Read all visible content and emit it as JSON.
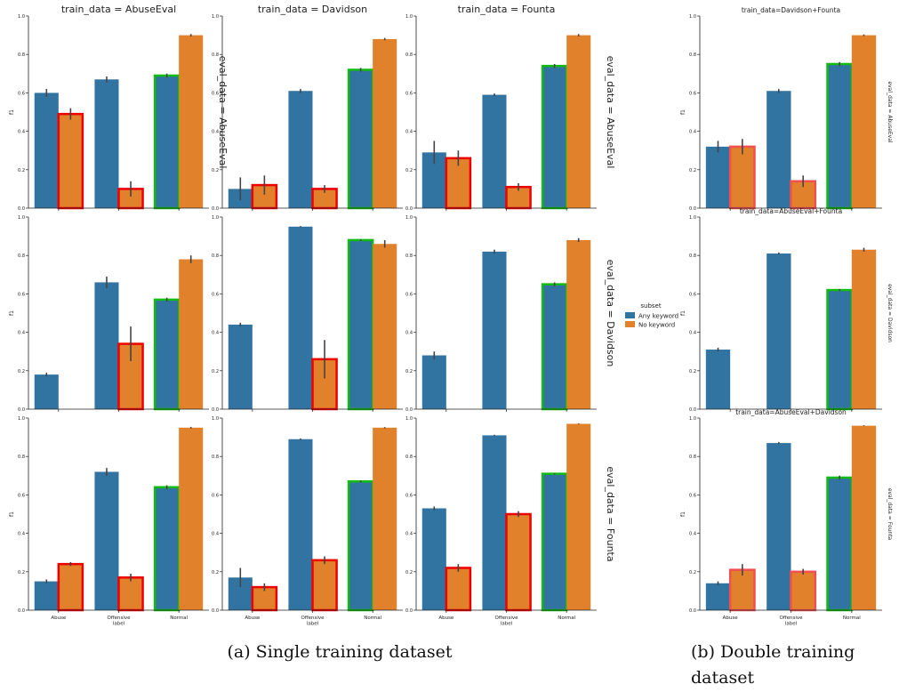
{
  "figure": {
    "caption_a": "(a) Single training dataset",
    "caption_b_line1": "(b) Double training",
    "caption_b_line2": "dataset"
  },
  "legend": {
    "title": "subset",
    "items": [
      {
        "label": "Any keyword",
        "color": "#3274a1"
      },
      {
        "label": "No keyword",
        "color": "#e1812c"
      }
    ]
  },
  "colors": {
    "any_keyword": "#3274a1",
    "no_keyword": "#e1812c",
    "highlight_red": "#ee0000",
    "highlight_red_b": "#f05050",
    "highlight_green": "#11bb11",
    "error_bar": "#444444"
  },
  "chart_data": [
    {
      "type": "bar",
      "group": "a",
      "col_title": "train_data = AbuseEval",
      "row_title": "eval_data = AbuseEval",
      "ylabel": "f1",
      "categories": [
        "Abuse",
        "Offensive\nlabel",
        "Normal"
      ],
      "ylim": [
        0,
        1
      ],
      "yticks": [
        "0.0",
        "0.2",
        "0.4",
        "0.6",
        "0.8",
        "1.0"
      ],
      "show_xticks": false,
      "series": [
        {
          "name": "Any keyword",
          "values": [
            0.6,
            0.67,
            0.69
          ],
          "err": [
            0.02,
            0.015,
            0.01
          ]
        },
        {
          "name": "No keyword",
          "values": [
            0.49,
            0.1,
            0.9
          ],
          "err": [
            0.03,
            0.04,
            0.006
          ]
        }
      ],
      "highlight": [
        [
          null,
          null,
          "green"
        ],
        [
          "red",
          "red",
          null
        ]
      ]
    },
    {
      "type": "bar",
      "group": "a",
      "col_title": "train_data = Davidson",
      "row_title": "",
      "ylabel": "",
      "categories": [
        "Abuse",
        "Offensive\nlabel",
        "Normal"
      ],
      "ylim": [
        0,
        1
      ],
      "yticks": [
        "0.0",
        "0.2",
        "0.4",
        "0.6",
        "0.8",
        "1.0"
      ],
      "show_xticks": false,
      "series": [
        {
          "name": "Any keyword",
          "values": [
            0.1,
            0.61,
            0.72
          ],
          "err": [
            0.06,
            0.01,
            0.01
          ]
        },
        {
          "name": "No keyword",
          "values": [
            0.12,
            0.1,
            0.88
          ],
          "err": [
            0.05,
            0.02,
            0.006
          ]
        }
      ],
      "highlight": [
        [
          null,
          null,
          "green"
        ],
        [
          "red",
          "red",
          null
        ]
      ]
    },
    {
      "type": "bar",
      "group": "a",
      "col_title": "train_data = Founta",
      "row_title": "eval_data = AbuseEval",
      "ylabel": "",
      "categories": [
        "Abuse",
        "Offensive\nlabel",
        "Normal"
      ],
      "ylim": [
        0,
        1
      ],
      "yticks": [
        "0.0",
        "0.2",
        "0.4",
        "0.6",
        "0.8",
        "1.0"
      ],
      "show_xticks": false,
      "series": [
        {
          "name": "Any keyword",
          "values": [
            0.29,
            0.59,
            0.74
          ],
          "err": [
            0.06,
            0.007,
            0.01
          ]
        },
        {
          "name": "No keyword",
          "values": [
            0.26,
            0.11,
            0.9
          ],
          "err": [
            0.04,
            0.02,
            0.006
          ]
        }
      ],
      "highlight": [
        [
          null,
          null,
          "green"
        ],
        [
          "red",
          "red",
          null
        ]
      ]
    },
    {
      "type": "bar",
      "group": "a",
      "col_title": "",
      "row_title": "",
      "ylabel": "f1",
      "categories": [
        "Abuse",
        "Offensive\nlabel",
        "Normal"
      ],
      "ylim": [
        0,
        1
      ],
      "yticks": [
        "0.0",
        "0.2",
        "0.4",
        "0.6",
        "0.8",
        "1.0"
      ],
      "show_xticks": false,
      "series": [
        {
          "name": "Any keyword",
          "values": [
            0.18,
            0.66,
            0.57
          ],
          "err": [
            0.01,
            0.03,
            0.01
          ]
        },
        {
          "name": "No keyword",
          "values": [
            0.0,
            0.34,
            0.78
          ],
          "err": [
            0,
            0.09,
            0.02
          ]
        }
      ],
      "highlight": [
        [
          null,
          null,
          "green"
        ],
        [
          "red",
          "red",
          null
        ]
      ]
    },
    {
      "type": "bar",
      "group": "a",
      "col_title": "",
      "row_title": "",
      "ylabel": "",
      "categories": [
        "Abuse",
        "Offensive\nlabel",
        "Normal"
      ],
      "ylim": [
        0,
        1
      ],
      "yticks": [
        "0.0",
        "0.2",
        "0.4",
        "0.6",
        "0.8",
        "1.0"
      ],
      "show_xticks": false,
      "series": [
        {
          "name": "Any keyword",
          "values": [
            0.44,
            0.95,
            0.88
          ],
          "err": [
            0.01,
            0.003,
            0.004
          ]
        },
        {
          "name": "No keyword",
          "values": [
            0.0,
            0.26,
            0.86
          ],
          "err": [
            0,
            0.1,
            0.02
          ]
        }
      ],
      "highlight": [
        [
          null,
          null,
          "green"
        ],
        [
          "red",
          "red",
          null
        ]
      ]
    },
    {
      "type": "bar",
      "group": "a",
      "col_title": "",
      "row_title": "eval_data = Davidson",
      "ylabel": "",
      "categories": [
        "Abuse",
        "Offensive\nlabel",
        "Normal"
      ],
      "ylim": [
        0,
        1
      ],
      "yticks": [
        "0.0",
        "0.2",
        "0.4",
        "0.6",
        "0.8",
        "1.0"
      ],
      "show_xticks": false,
      "series": [
        {
          "name": "Any keyword",
          "values": [
            0.28,
            0.82,
            0.65
          ],
          "err": [
            0.02,
            0.01,
            0.01
          ]
        },
        {
          "name": "No keyword",
          "values": [
            0.0,
            0.0,
            0.88
          ],
          "err": [
            0,
            0,
            0.01
          ]
        }
      ],
      "highlight": [
        [
          null,
          null,
          "green"
        ],
        [
          "red",
          "red",
          null
        ]
      ]
    },
    {
      "type": "bar",
      "group": "a",
      "col_title": "",
      "row_title": "",
      "ylabel": "f1",
      "categories": [
        "Abuse",
        "Offensive\nlabel",
        "Normal"
      ],
      "ylim": [
        0,
        1
      ],
      "yticks": [
        "0.0",
        "0.2",
        "0.4",
        "0.6",
        "0.8",
        "1.0"
      ],
      "show_xticks": true,
      "series": [
        {
          "name": "Any keyword",
          "values": [
            0.15,
            0.72,
            0.64
          ],
          "err": [
            0.01,
            0.02,
            0.01
          ]
        },
        {
          "name": "No keyword",
          "values": [
            0.24,
            0.17,
            0.95
          ],
          "err": [
            0.01,
            0.02,
            0.004
          ]
        }
      ],
      "highlight": [
        [
          null,
          null,
          "green"
        ],
        [
          "red",
          "red",
          null
        ]
      ]
    },
    {
      "type": "bar",
      "group": "a",
      "col_title": "",
      "row_title": "",
      "ylabel": "",
      "categories": [
        "Abuse",
        "Offensive\nlabel",
        "Normal"
      ],
      "ylim": [
        0,
        1
      ],
      "yticks": [
        "0.0",
        "0.2",
        "0.4",
        "0.6",
        "0.8",
        "1.0"
      ],
      "show_xticks": true,
      "series": [
        {
          "name": "Any keyword",
          "values": [
            0.17,
            0.89,
            0.67
          ],
          "err": [
            0.05,
            0.004,
            0.005
          ]
        },
        {
          "name": "No keyword",
          "values": [
            0.12,
            0.26,
            0.95
          ],
          "err": [
            0.02,
            0.02,
            0.003
          ]
        }
      ],
      "highlight": [
        [
          null,
          null,
          "green"
        ],
        [
          "red",
          "red",
          null
        ]
      ]
    },
    {
      "type": "bar",
      "group": "a",
      "col_title": "",
      "row_title": "eval_data = Founta",
      "ylabel": "",
      "categories": [
        "Abuse",
        "Offensive\nlabel",
        "Normal"
      ],
      "ylim": [
        0,
        1
      ],
      "yticks": [
        "0.0",
        "0.2",
        "0.4",
        "0.6",
        "0.8",
        "1.0"
      ],
      "show_xticks": true,
      "series": [
        {
          "name": "Any keyword",
          "values": [
            0.53,
            0.91,
            0.71
          ],
          "err": [
            0.01,
            0.003,
            0.003
          ]
        },
        {
          "name": "No keyword",
          "values": [
            0.22,
            0.5,
            0.97
          ],
          "err": [
            0.02,
            0.015,
            0.002
          ]
        }
      ],
      "highlight": [
        [
          null,
          null,
          "green"
        ],
        [
          "red",
          "red",
          null
        ]
      ]
    },
    {
      "type": "bar",
      "group": "b",
      "col_title": "train_data=Davidson+Founta",
      "row_title": "eval_data = AbuseEval",
      "ylabel": "f1",
      "categories": [
        "Abuse",
        "Offensive\nlabel",
        "Normal"
      ],
      "ylim": [
        0,
        1
      ],
      "yticks": [
        "0.0",
        "0.2",
        "0.4",
        "0.6",
        "0.8",
        "1.0"
      ],
      "show_xticks": false,
      "series": [
        {
          "name": "Any keyword",
          "values": [
            0.32,
            0.61,
            0.75
          ],
          "err": [
            0.03,
            0.01,
            0.01
          ]
        },
        {
          "name": "No keyword",
          "values": [
            0.32,
            0.14,
            0.9
          ],
          "err": [
            0.04,
            0.03,
            0.004
          ]
        }
      ],
      "highlight": [
        [
          null,
          null,
          "green"
        ],
        [
          "red",
          "red",
          null
        ]
      ]
    },
    {
      "type": "bar",
      "group": "b",
      "col_title": "train_data=AbuseEval+Founta",
      "row_title": "eval_data = Davidson",
      "ylabel": "f1",
      "categories": [
        "Abuse",
        "Offensive\nlabel",
        "Normal"
      ],
      "ylim": [
        0,
        1
      ],
      "yticks": [
        "0.0",
        "0.2",
        "0.4",
        "0.6",
        "0.8",
        "1.0"
      ],
      "show_xticks": false,
      "series": [
        {
          "name": "Any keyword",
          "values": [
            0.31,
            0.81,
            0.62
          ],
          "err": [
            0.01,
            0.005,
            0.005
          ]
        },
        {
          "name": "No keyword",
          "values": [
            0.0,
            0.0,
            0.83
          ],
          "err": [
            0,
            0,
            0.01
          ]
        }
      ],
      "highlight": [
        [
          null,
          null,
          "green"
        ],
        [
          "red",
          "red",
          null
        ]
      ]
    },
    {
      "type": "bar",
      "group": "b",
      "col_title": "train_data=AbuseEval+Davidson",
      "row_title": "eval_data = Founta",
      "ylabel": "f1",
      "categories": [
        "Abuse",
        "Offensive\nlabel",
        "Normal"
      ],
      "ylim": [
        0,
        1
      ],
      "yticks": [
        "0.0",
        "0.2",
        "0.4",
        "0.6",
        "0.8",
        "1.0"
      ],
      "show_xticks": true,
      "series": [
        {
          "name": "Any keyword",
          "values": [
            0.14,
            0.87,
            0.69
          ],
          "err": [
            0.01,
            0.005,
            0.01
          ]
        },
        {
          "name": "No keyword",
          "values": [
            0.21,
            0.2,
            0.96
          ],
          "err": [
            0.03,
            0.015,
            0.002
          ]
        }
      ],
      "highlight": [
        [
          null,
          null,
          "green"
        ],
        [
          "red",
          "red",
          null
        ]
      ]
    }
  ]
}
